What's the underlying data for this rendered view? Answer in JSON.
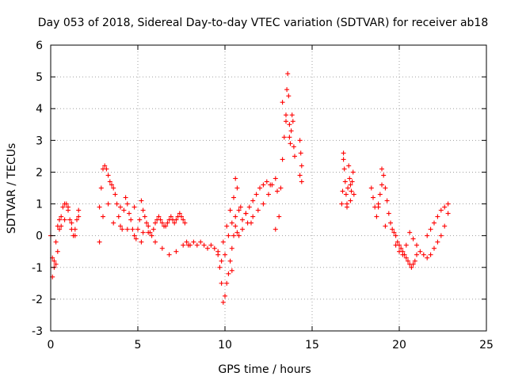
{
  "chart_data": {
    "type": "scatter",
    "title": "Day 053 of 2018, Sidereal Day-to-day VTEC variation (SDTVAR) for receiver ab18",
    "xlabel": "GPS time / hours",
    "ylabel": "SDTVAR / TECUs",
    "xlim": [
      0,
      25
    ],
    "ylim": [
      -3,
      6
    ],
    "xticks": [
      0,
      5,
      10,
      15,
      20,
      25
    ],
    "yticks": [
      -3,
      -2,
      -1,
      0,
      1,
      2,
      3,
      4,
      5,
      6
    ],
    "grid": true,
    "marker": "+",
    "series_color": "#ff0000",
    "series": [
      {
        "name": "SDTVAR",
        "x": [
          0.0,
          0.1,
          0.2,
          0.3,
          0.4,
          0.5,
          0.6,
          0.7,
          0.8,
          0.9,
          1.0,
          1.1,
          1.2,
          1.3,
          1.4,
          1.5,
          1.6,
          0.1,
          0.2,
          0.3,
          0.4,
          0.5,
          0.6,
          0.8,
          1.0,
          1.2,
          1.4,
          1.6,
          2.8,
          2.9,
          3.0,
          3.1,
          3.2,
          3.3,
          3.4,
          3.5,
          3.6,
          3.7,
          3.8,
          3.9,
          4.0,
          4.1,
          4.2,
          4.3,
          4.4,
          4.5,
          4.6,
          4.7,
          4.8,
          4.9,
          5.0,
          5.1,
          5.2,
          5.3,
          5.4,
          5.5,
          5.6,
          5.7,
          5.8,
          5.9,
          6.0,
          6.1,
          6.2,
          6.3,
          6.4,
          6.5,
          6.6,
          6.7,
          6.8,
          6.9,
          7.0,
          7.1,
          7.2,
          7.3,
          7.4,
          7.5,
          7.6,
          7.7,
          3.0,
          3.3,
          3.6,
          4.0,
          4.4,
          4.8,
          5.2,
          5.6,
          6.0,
          6.4,
          6.8,
          7.2,
          7.6,
          2.8,
          5.3,
          7.8,
          7.9,
          8.0,
          8.2,
          8.4,
          8.6,
          8.8,
          9.0,
          9.2,
          9.4,
          9.6,
          9.8,
          10.0,
          10.2,
          10.4,
          10.6,
          10.8,
          11.0,
          11.2,
          11.4,
          11.6,
          11.8,
          12.0,
          12.2,
          12.4,
          12.6,
          9.7,
          9.8,
          9.9,
          10.0,
          10.1,
          10.2,
          10.3,
          10.4,
          10.5,
          10.6,
          10.7,
          10.8,
          11.0,
          11.3,
          11.6,
          11.9,
          12.2,
          12.5,
          12.7,
          9.9,
          10.1,
          10.3,
          10.5,
          10.7,
          9.6,
          10.9,
          11.2,
          11.5,
          10.6,
          10.4,
          12.9,
          13.1,
          13.2,
          13.3,
          13.4,
          13.5,
          13.55,
          13.6,
          13.65,
          13.7,
          13.75,
          13.8,
          13.85,
          13.9,
          13.95,
          14.0,
          14.3,
          14.35,
          14.4,
          14.3,
          14.4,
          13.3,
          13.5,
          13.7,
          12.9,
          13.0,
          16.7,
          16.75,
          16.8,
          16.85,
          16.9,
          16.95,
          17.0,
          17.05,
          17.1,
          17.15,
          17.2,
          17.25,
          17.3,
          17.35,
          17.4,
          16.8,
          17.0,
          17.2,
          18.4,
          18.5,
          18.6,
          18.7,
          18.8,
          18.9,
          19.0,
          19.1,
          19.2,
          19.3,
          19.4,
          19.5,
          19.6,
          19.7,
          19.8,
          19.9,
          20.0,
          20.1,
          20.2,
          20.3,
          20.4,
          20.5,
          20.6,
          20.7,
          20.8,
          20.9,
          21.0,
          19.8,
          20.0,
          20.2,
          20.4,
          20.6,
          20.8,
          21.0,
          21.2,
          21.4,
          21.6,
          21.8,
          22.0,
          22.2,
          22.4,
          22.6,
          22.8,
          21.6,
          21.8,
          22.0,
          22.2,
          22.4,
          22.6,
          22.8,
          19.0,
          18.8,
          19.2
        ],
        "y": [
          0.0,
          -0.7,
          -1.0,
          -0.9,
          -0.5,
          0.2,
          0.6,
          0.9,
          1.0,
          1.0,
          0.8,
          0.5,
          0.2,
          0.0,
          0.2,
          0.5,
          0.8,
          -1.3,
          -0.8,
          -0.2,
          0.3,
          0.5,
          0.3,
          0.5,
          0.9,
          0.4,
          0.0,
          0.6,
          0.9,
          1.5,
          2.1,
          2.2,
          2.1,
          1.9,
          1.7,
          1.6,
          1.5,
          1.3,
          1.0,
          0.6,
          0.3,
          0.2,
          0.8,
          1.2,
          1.0,
          0.7,
          0.5,
          0.2,
          0.0,
          -0.1,
          0.2,
          0.5,
          1.1,
          0.8,
          0.6,
          0.4,
          0.3,
          0.1,
          0.0,
          0.2,
          0.4,
          0.5,
          0.6,
          0.5,
          0.4,
          0.3,
          0.3,
          0.4,
          0.5,
          0.6,
          0.5,
          0.4,
          0.5,
          0.6,
          0.7,
          0.6,
          0.5,
          0.4,
          0.6,
          1.0,
          0.4,
          0.9,
          0.2,
          0.9,
          -0.2,
          0.1,
          -0.2,
          -0.4,
          -0.6,
          -0.5,
          -0.3,
          -0.2,
          0.1,
          -0.2,
          -0.3,
          -0.3,
          -0.2,
          -0.3,
          -0.2,
          -0.3,
          -0.4,
          -0.3,
          -0.4,
          -0.6,
          -0.8,
          -0.6,
          0.0,
          0.4,
          0.6,
          0.8,
          0.5,
          0.7,
          0.9,
          1.1,
          1.3,
          1.5,
          1.6,
          1.7,
          1.6,
          -1.0,
          -1.5,
          -2.1,
          -1.9,
          -1.5,
          -1.2,
          -0.8,
          -0.4,
          0.0,
          0.3,
          0.1,
          0.0,
          0.2,
          0.4,
          0.6,
          0.8,
          1.0,
          1.3,
          1.6,
          -0.2,
          0.3,
          0.8,
          1.2,
          1.5,
          -0.5,
          0.9,
          0.7,
          0.4,
          1.8,
          -1.1,
          0.2,
          0.6,
          1.5,
          2.4,
          3.1,
          3.8,
          4.6,
          5.1,
          4.4,
          3.5,
          2.9,
          3.3,
          3.8,
          3.6,
          2.8,
          2.5,
          3.0,
          2.6,
          2.2,
          1.9,
          1.7,
          4.2,
          3.6,
          3.1,
          1.8,
          1.4,
          1.0,
          1.4,
          2.6,
          2.1,
          1.7,
          1.3,
          1.0,
          1.5,
          2.2,
          1.8,
          1.1,
          1.4,
          1.7,
          2.0,
          1.3,
          2.4,
          0.9,
          1.6,
          1.5,
          1.2,
          0.9,
          0.6,
          0.9,
          1.3,
          1.6,
          1.9,
          1.5,
          1.1,
          0.7,
          0.4,
          0.2,
          0.1,
          0.0,
          -0.2,
          -0.3,
          -0.4,
          -0.5,
          -0.6,
          -0.7,
          -0.8,
          -0.9,
          -1.0,
          -0.9,
          -0.8,
          -0.6,
          -0.3,
          -0.5,
          -0.6,
          -0.3,
          0.1,
          -0.1,
          -0.3,
          -0.5,
          -0.6,
          -0.7,
          -0.6,
          -0.4,
          -0.2,
          0.0,
          0.3,
          0.7,
          0.0,
          0.2,
          0.4,
          0.6,
          0.8,
          0.9,
          1.0,
          2.1,
          1.0,
          0.3
        ]
      }
    ]
  }
}
